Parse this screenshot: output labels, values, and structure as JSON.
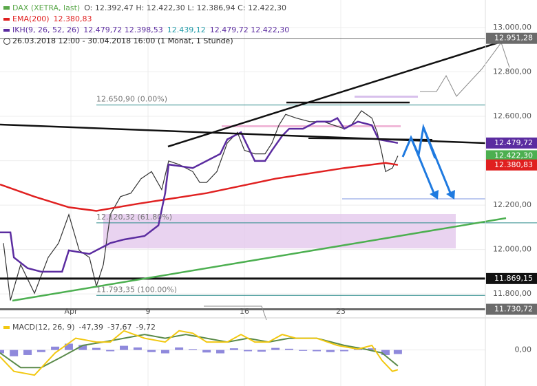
{
  "header": {
    "lines": [
      [
        {
          "text": "DAX (XETRA, last)",
          "color": "#5aa84a"
        },
        {
          "text": "O: 12.392,47  H: 12.422,30  L: 12.386,94  C: 12.422,30",
          "color": "#444"
        }
      ],
      [
        {
          "text": "26.03.2018 12:00 - 30.04.2018 16:00 (1 Monat, 1 Stunde)",
          "color": "#222"
        }
      ]
    ]
  },
  "chart_data": [
    {
      "type": "line",
      "panel": "price",
      "xlim": [
        -3.68,
        21.5
      ],
      "xticks": [
        {
          "value": 0,
          "label": "Apr"
        },
        {
          "value": 4,
          "label": "9"
        },
        {
          "value": 9,
          "label": "16"
        },
        {
          "value": 14,
          "label": "23"
        }
      ],
      "ylim": [
        11692,
        13124
      ],
      "yticks": [
        {
          "value": 11800,
          "label": "11.800,00"
        },
        {
          "value": 12000,
          "label": "12.000,00"
        },
        {
          "value": 12200,
          "label": "12.200,00"
        },
        {
          "value": 12400,
          "label": "12.400,00"
        },
        {
          "value": 12600,
          "label": "12.600,00"
        },
        {
          "value": 12800,
          "label": "12.800,00"
        },
        {
          "value": 13000,
          "label": "13.000,00"
        }
      ],
      "series": [
        {
          "name": "DAX (XETRA, last)",
          "color": "#333333",
          "x": [
            -3.5,
            -3.14,
            -2.61,
            -1.89,
            -1.18,
            -0.64,
            -0.11,
            0.43,
            0.96,
            1.32,
            1.68,
            2.04,
            2.57,
            3.11,
            3.64,
            4.18,
            4.71,
            5.07,
            5.61,
            6.32,
            6.68,
            7.04,
            7.57,
            8.11,
            8.64,
            9,
            9.54,
            10.07,
            10.43,
            10.79,
            11.14,
            11.68,
            12.39,
            13.11,
            13.64,
            14.18,
            14.54,
            15.07,
            15.61,
            15.89,
            16.14,
            16.32,
            16.68,
            16.96
          ],
          "values": [
            12029,
            11771,
            11932,
            11803,
            11964,
            12029,
            12157,
            11996,
            11964,
            11835,
            11932,
            12157,
            12238,
            12254,
            12319,
            12351,
            12270,
            12399,
            12383,
            12351,
            12302,
            12302,
            12351,
            12480,
            12528,
            12447,
            12431,
            12431,
            12480,
            12560,
            12609,
            12592,
            12576,
            12576,
            12560,
            12544,
            12560,
            12625,
            12592,
            12528,
            12431,
            12351,
            12367,
            12422
          ]
        },
        {
          "name": "EMA(200)",
          "color": "#e02020",
          "legend": [
            {
              "text": "12.380,83",
              "color": "#e02020"
            }
          ],
          "x": [
            -3.68,
            -1.89,
            -0.11,
            1.32,
            3.46,
            7.04,
            10.61,
            14.18,
            16.32,
            16.96
          ],
          "values": [
            12293,
            12238,
            12190,
            12174,
            12206,
            12254,
            12319,
            12367,
            12390,
            12381
          ]
        },
        {
          "name": "IKH(9, 26, 52, 26)",
          "color": "#5b2ca0",
          "legend": [
            {
              "text": "12.479,72  12.398,53",
              "color": "#5b2ca0"
            },
            {
              "text": "12.439,12",
              "color": "#1f9aa8"
            },
            {
              "text": "12.479,72  12.422,30",
              "color": "#5b2ca0"
            }
          ],
          "x": [
            -3.68,
            -3.14,
            -2.96,
            -2.25,
            -1.54,
            -0.46,
            -0.11,
            0.96,
            2.04,
            2.75,
            3.82,
            4.54,
            4.89,
            5.07,
            6.32,
            7.04,
            7.75,
            8.11,
            8.82,
            9.54,
            10.07,
            10.43,
            10.96,
            11.32,
            12.04,
            12.75,
            13.46,
            13.82,
            14.18,
            14.89,
            15.61,
            15.96,
            16.96
          ],
          "values": [
            12077,
            12077,
            11964,
            11916,
            11900,
            11900,
            11996,
            11980,
            12029,
            12045,
            12061,
            12109,
            12254,
            12383,
            12367,
            12399,
            12431,
            12496,
            12528,
            12399,
            12399,
            12447,
            12512,
            12544,
            12544,
            12576,
            12576,
            12592,
            12544,
            12576,
            12560,
            12496,
            12480
          ]
        }
      ],
      "fib_levels": [
        {
          "value": 12650.9,
          "label": "12.650,90 (0.00%)"
        },
        {
          "value": 12120.32,
          "label": "12.120,32 (61.80%)"
        },
        {
          "value": 11793.35,
          "label": "11.793,35 (100.00%)"
        }
      ],
      "price_labels": [
        {
          "value": 12951.28,
          "label": "12.951,28",
          "color": "#6b6b6b"
        },
        {
          "value": 12479.72,
          "label": "12.479,72",
          "color": "#5b2ca0"
        },
        {
          "value": 12422.3,
          "label": "12.422,30",
          "color": "#4caf50"
        },
        {
          "value": 12380.83,
          "label": "12.380,83",
          "color": "#e02020"
        },
        {
          "value": 11869.15,
          "label": "11.869,15",
          "color": "#111111"
        },
        {
          "value": 11730.72,
          "label": "11.730,72",
          "color": "#6b6b6b"
        }
      ]
    },
    {
      "type": "macd",
      "panel": "macd",
      "title": "MACD(12, 26, 9)",
      "legend": [
        {
          "text": "-47,39",
          "color": "#444"
        },
        {
          "text": "-37,67",
          "color": "#444"
        },
        {
          "text": "-9,72",
          "color": "#444"
        }
      ],
      "ylim": [
        -86,
        75
      ],
      "yticks": [
        {
          "value": 0,
          "label": "0,00"
        }
      ],
      "series": [
        {
          "name": "MACD",
          "color": "#f2c811",
          "x": [
            -3.68,
            -2.96,
            -1.89,
            -0.82,
            0.25,
            1.32,
            2.04,
            2.75,
            3.82,
            4.89,
            5.61,
            6.32,
            7.04,
            8.11,
            8.82,
            9.54,
            10.25,
            10.96,
            11.68,
            12.75,
            13.82,
            14.89,
            15.61,
            16.14,
            16.68,
            16.96
          ],
          "values": [
            -16,
            -51,
            -60,
            -7,
            28,
            19,
            19,
            46,
            28,
            19,
            46,
            40,
            19,
            19,
            37,
            19,
            19,
            37,
            28,
            28,
            11,
            2,
            11,
            -25,
            -51,
            -47
          ]
        },
        {
          "name": "Signal",
          "color": "#5a8a4a",
          "x": [
            -3.68,
            -2.61,
            -1.54,
            -0.46,
            0.61,
            1.68,
            2.75,
            3.82,
            4.89,
            5.96,
            7.04,
            8.11,
            9.18,
            10.25,
            11.32,
            12.75,
            14.18,
            15.25,
            16.14,
            16.96
          ],
          "values": [
            -7,
            -42,
            -42,
            -16,
            11,
            19,
            28,
            37,
            28,
            37,
            28,
            19,
            28,
            19,
            28,
            28,
            11,
            2,
            -7,
            -38
          ]
        },
        {
          "name": "Histogram",
          "color": "#7b74d6",
          "x": [
            -3.68,
            -2.96,
            -2.25,
            -1.54,
            -0.82,
            -0.11,
            0.61,
            1.32,
            2.04,
            2.75,
            3.46,
            4.18,
            4.89,
            5.61,
            6.32,
            7.04,
            7.75,
            8.46,
            9.18,
            9.89,
            10.61,
            11.32,
            12.04,
            12.75,
            13.46,
            14.18,
            14.89,
            15.61,
            16.32,
            16.96
          ],
          "values": [
            -8,
            -15,
            -12,
            -5,
            8,
            15,
            12,
            5,
            -3,
            10,
            6,
            -5,
            -8,
            6,
            2,
            -6,
            -8,
            4,
            -3,
            -4,
            5,
            3,
            -2,
            -3,
            -5,
            -3,
            2,
            4,
            -12,
            -9.72
          ]
        }
      ]
    }
  ]
}
